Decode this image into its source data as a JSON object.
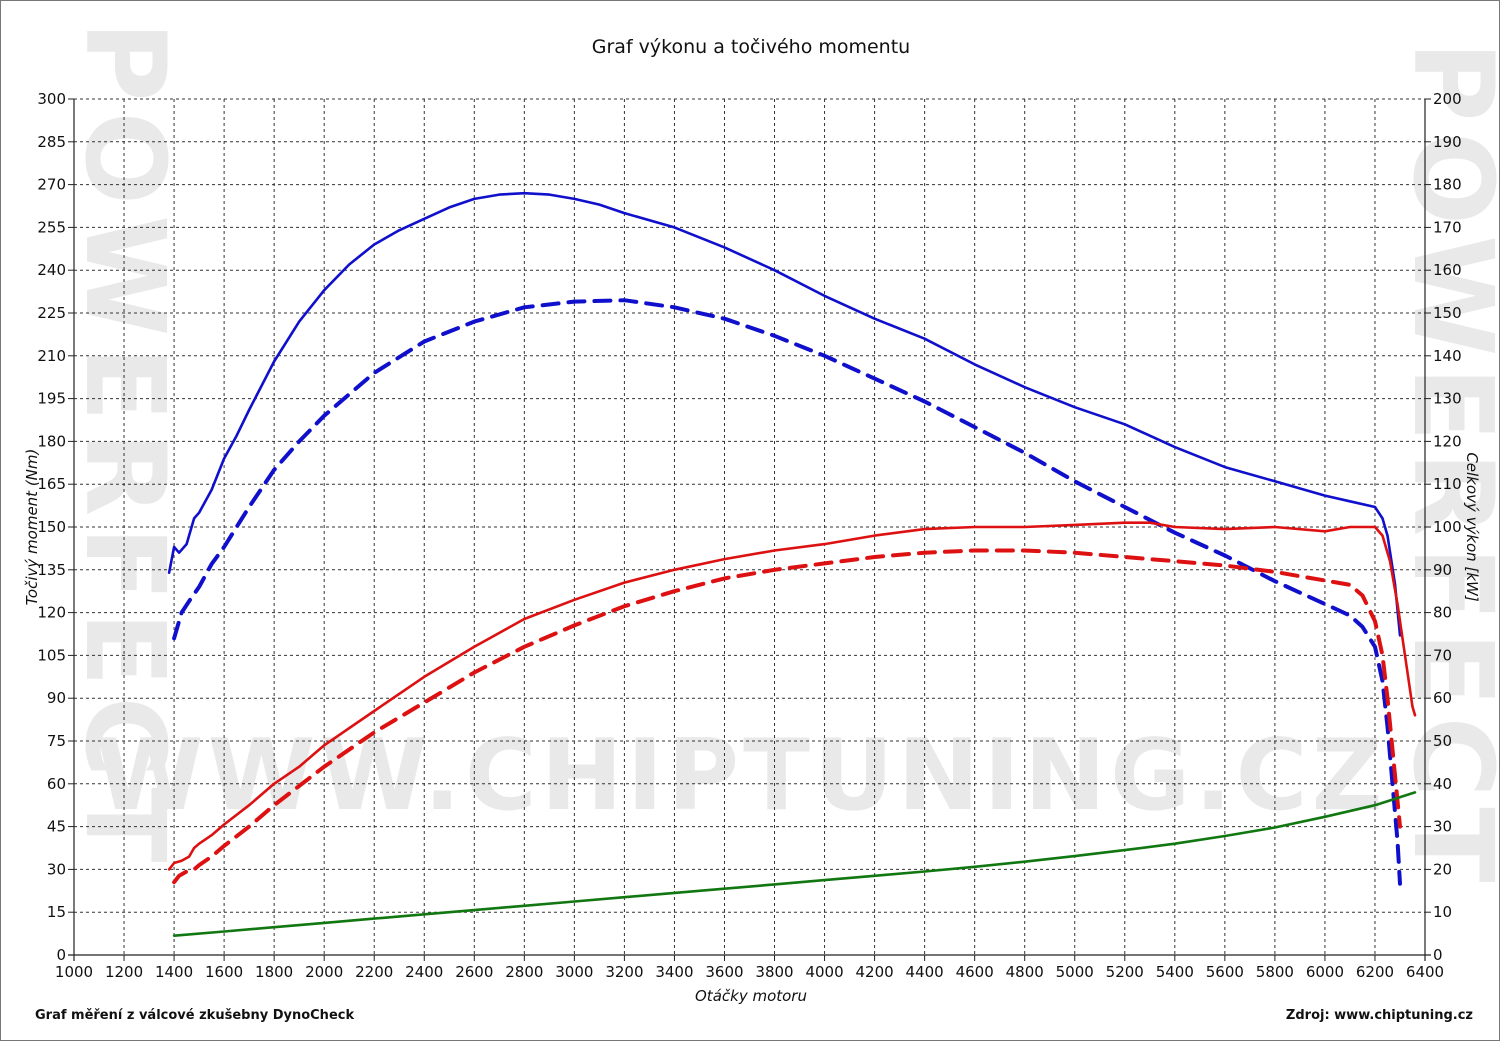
{
  "chart_data": {
    "type": "line",
    "title": "Graf výkonu a točivého momentu",
    "xlabel": "Otáčky motoru",
    "ylabel_left": "Točivý moment (Nm)",
    "ylabel_right": "Celkový výkon [kW]",
    "xlim": [
      1000,
      6400
    ],
    "ylim_left": [
      0,
      300
    ],
    "ylim_right": [
      0,
      200
    ],
    "x_ticks": [
      1000,
      1200,
      1400,
      1600,
      1800,
      2000,
      2200,
      2400,
      2600,
      2800,
      3000,
      3200,
      3400,
      3600,
      3800,
      4000,
      4200,
      4400,
      4600,
      4800,
      5000,
      5200,
      5400,
      5600,
      5800,
      6000,
      6200,
      6400
    ],
    "y_left_ticks": [
      0,
      15,
      30,
      45,
      60,
      75,
      90,
      105,
      120,
      135,
      150,
      165,
      180,
      195,
      210,
      225,
      240,
      255,
      270,
      285,
      300
    ],
    "y_right_ticks": [
      0,
      10,
      20,
      30,
      40,
      50,
      60,
      70,
      80,
      90,
      100,
      110,
      120,
      130,
      140,
      150,
      160,
      170,
      180,
      190,
      200
    ],
    "grid": true,
    "watermark": "WWW.CHIPTUNING.CZ",
    "side_watermark": "POWERFECT",
    "series": [
      {
        "style": "solid",
        "color": "#1010cc",
        "axis": "left",
        "x": [
          1380,
          1400,
          1420,
          1450,
          1480,
          1500,
          1550,
          1600,
          1650,
          1700,
          1800,
          1900,
          2000,
          2100,
          2200,
          2300,
          2400,
          2500,
          2600,
          2700,
          2800,
          2900,
          3000,
          3100,
          3200,
          3400,
          3600,
          3800,
          4000,
          4200,
          4400,
          4600,
          4800,
          5000,
          5200,
          5400,
          5600,
          5800,
          6000,
          6100,
          6200,
          6230,
          6250,
          6280,
          6300
        ],
        "y": [
          134,
          143,
          141,
          144,
          153,
          155,
          163,
          174,
          182,
          191,
          208,
          222,
          233,
          242,
          249,
          254,
          258,
          262,
          265,
          266.5,
          267,
          266.5,
          265,
          263,
          260,
          255,
          248,
          240,
          231,
          223,
          216,
          207,
          199,
          192,
          186,
          178,
          171,
          166,
          161,
          159,
          157,
          153,
          147,
          130,
          112
        ]
      },
      {
        "style": "dashed",
        "color": "#1010cc",
        "axis": "left",
        "x": [
          1400,
          1430,
          1460,
          1500,
          1550,
          1600,
          1700,
          1800,
          1900,
          2000,
          2200,
          2400,
          2600,
          2800,
          3000,
          3200,
          3400,
          3600,
          3800,
          4000,
          4200,
          4400,
          4600,
          4800,
          5000,
          5200,
          5400,
          5600,
          5800,
          6000,
          6100,
          6150,
          6200,
          6230,
          6250,
          6270,
          6290,
          6300
        ],
        "y": [
          111,
          120,
          124,
          129,
          137,
          143,
          157,
          170,
          180,
          189,
          204,
          215,
          222,
          227,
          229,
          229.5,
          227,
          223,
          217,
          210,
          202,
          194,
          185,
          176,
          166,
          157,
          148,
          140,
          131,
          123,
          119,
          115,
          108,
          96,
          80,
          60,
          40,
          25
        ]
      },
      {
        "style": "solid",
        "color": "#dd1111",
        "axis": "right",
        "x": [
          1380,
          1400,
          1430,
          1460,
          1480,
          1500,
          1550,
          1600,
          1700,
          1800,
          1900,
          2000,
          2200,
          2400,
          2600,
          2800,
          3000,
          3200,
          3400,
          3600,
          3800,
          4000,
          4200,
          4400,
          4600,
          4800,
          5000,
          5200,
          5300,
          5400,
          5600,
          5800,
          6000,
          6100,
          6200,
          6230,
          6260,
          6290,
          6320,
          6350,
          6360
        ],
        "y": [
          20,
          21.5,
          22,
          23,
          25,
          26,
          28,
          30.5,
          35,
          40,
          44,
          49,
          57,
          65,
          72,
          78.5,
          83,
          87,
          90,
          92.5,
          94.5,
          96,
          98,
          99.5,
          100,
          100,
          100.5,
          101,
          101,
          100,
          99.5,
          100,
          99,
          100,
          100,
          98,
          92,
          82,
          70,
          58,
          56
        ]
      },
      {
        "style": "dashed",
        "color": "#dd1111",
        "axis": "right",
        "x": [
          1400,
          1420,
          1450,
          1480,
          1500,
          1550,
          1600,
          1700,
          1800,
          1900,
          2000,
          2200,
          2400,
          2600,
          2800,
          3000,
          3200,
          3400,
          3600,
          3800,
          4000,
          4200,
          4400,
          4600,
          4800,
          5000,
          5200,
          5400,
          5600,
          5800,
          6000,
          6100,
          6150,
          6200,
          6230,
          6250,
          6270,
          6290,
          6300
        ],
        "y": [
          17,
          18.5,
          19.5,
          20,
          21,
          23,
          25.5,
          30,
          35,
          39.5,
          44,
          52,
          59,
          66,
          72,
          77,
          81.5,
          85,
          88,
          90,
          91.5,
          93,
          94,
          94.5,
          94.5,
          94,
          93,
          92,
          91,
          89.5,
          87.5,
          86.5,
          84,
          78,
          70,
          60,
          48,
          36,
          30
        ]
      },
      {
        "style": "solid",
        "color": "#117711",
        "axis": "right",
        "x": [
          1400,
          1600,
          1800,
          2000,
          2200,
          2400,
          2600,
          2800,
          3000,
          3200,
          3400,
          3600,
          3800,
          4000,
          4200,
          4400,
          4600,
          4800,
          5000,
          5200,
          5400,
          5600,
          5800,
          6000,
          6200,
          6360
        ],
        "y": [
          4.5,
          5.5,
          6.5,
          7.5,
          8.5,
          9.5,
          10.5,
          11.5,
          12.5,
          13.5,
          14.5,
          15.5,
          16.5,
          17.5,
          18.5,
          19.5,
          20.6,
          21.8,
          23.1,
          24.5,
          26,
          27.8,
          29.8,
          32.3,
          35,
          38
        ]
      }
    ]
  },
  "footer": {
    "left": "Graf měření z válcové zkušebny DynoCheck",
    "right": "Zdroj: www.chiptuning.cz"
  }
}
